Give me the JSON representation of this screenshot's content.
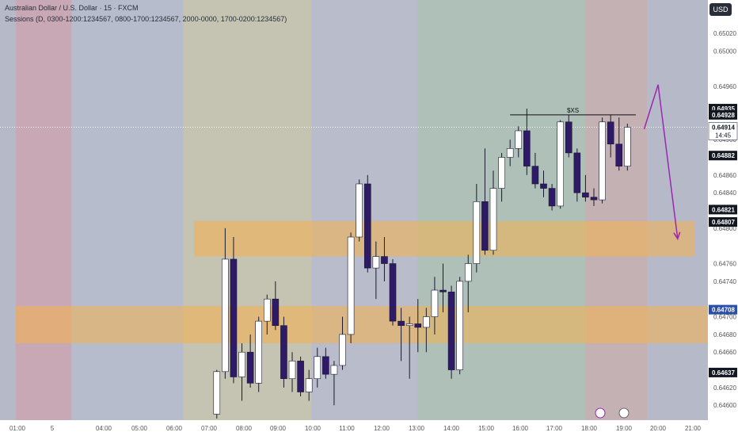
{
  "header": {
    "title": "Australian Dollar / U.S. Dollar · 15 · FXCM",
    "sessions": "Sessions (D, 0300-1200:1234567, 0800-1700:1234567, 2000-0000, 1700-0200:1234567)"
  },
  "currency_button": "USD",
  "colors": {
    "bull_body": "#ffffff",
    "bear_body": "#2e1a66",
    "wick": "#1a1a2e",
    "zone": "#f5b14c",
    "arrow": "#9c27b0",
    "price_line_bg": "#ffffff",
    "blue_label": "#2a4fa8"
  },
  "chart_data": {
    "type": "candlestick",
    "symbol": "AUDUSD",
    "interval": "15",
    "ylim": [
      0.64585,
      0.65055
    ],
    "y_ticks": [
      "0.65020",
      "0.65000",
      "0.64960",
      "0.64928",
      "0.64900",
      "0.64860",
      "0.64840",
      "0.64800",
      "0.64760",
      "0.64740",
      "0.64700",
      "0.64680",
      "0.64660",
      "0.64620",
      "0.64600"
    ],
    "x_ticks": [
      "01:00",
      "5",
      "04:00",
      "05:00",
      "06:00",
      "07:00",
      "08:00",
      "09:00",
      "10:00",
      "11:00",
      "12:00",
      "13:00",
      "14:00",
      "15:00",
      "16:00",
      "17:00",
      "18:00",
      "19:00",
      "20:00",
      "21:00"
    ],
    "price_labels": [
      {
        "text": "0.64935",
        "value": 0.64935,
        "style": "dark"
      },
      {
        "text": "0.64928",
        "value": 0.64928,
        "style": "dark"
      },
      {
        "text": "0.64914",
        "value": 0.64914,
        "style": "current",
        "sub": "14:45"
      },
      {
        "text": "0.64882",
        "value": 0.64882,
        "style": "dark"
      },
      {
        "text": "0.64821",
        "value": 0.64821,
        "style": "dark"
      },
      {
        "text": "0.64807",
        "value": 0.64807,
        "style": "dark"
      },
      {
        "text": "0.64708",
        "value": 0.64708,
        "style": "blue"
      },
      {
        "text": "0.64637",
        "value": 0.64637,
        "style": "dark"
      }
    ],
    "sessions": [
      {
        "start": "00:00",
        "end": "01:40",
        "color": "#c8a8b4"
      },
      {
        "start": "01:40",
        "end": "05:00",
        "color": "#b6bccc"
      },
      {
        "start": "05:00",
        "end": "08:50",
        "color": "#c5c4b2"
      },
      {
        "start": "08:50",
        "end": "12:00",
        "color": "#b8bccb"
      },
      {
        "start": "12:00",
        "end": "17:00",
        "color": "#aec0b8"
      },
      {
        "start": "17:00",
        "end": "18:50",
        "color": "#c4b1b4"
      }
    ],
    "zones": [
      {
        "from": 0.64808,
        "to": 0.64768,
        "start": "05:20",
        "end": "20:15"
      },
      {
        "from": 0.64712,
        "to": 0.6467,
        "start": "00:00",
        "end": "21:30"
      }
    ],
    "liquidity_line": {
      "value": 0.64928,
      "start": "14:45",
      "end": "18:30",
      "label": "$XS"
    },
    "projection": [
      {
        "time": "18:45",
        "value": 0.64912
      },
      {
        "time": "19:10",
        "value": 0.64962
      },
      {
        "time": "19:45",
        "value": 0.64788
      }
    ],
    "candles": [
      {
        "t": "06:00",
        "o": 0.6459,
        "h": 0.6464,
        "l": 0.64585,
        "c": 0.64638
      },
      {
        "t": "06:15",
        "o": 0.64638,
        "h": 0.648,
        "l": 0.6463,
        "c": 0.64765
      },
      {
        "t": "06:30",
        "o": 0.64765,
        "h": 0.6479,
        "l": 0.64625,
        "c": 0.64632
      },
      {
        "t": "06:45",
        "o": 0.64632,
        "h": 0.6467,
        "l": 0.64605,
        "c": 0.6466
      },
      {
        "t": "07:00",
        "o": 0.6466,
        "h": 0.6468,
        "l": 0.6462,
        "c": 0.64625
      },
      {
        "t": "07:15",
        "o": 0.64625,
        "h": 0.647,
        "l": 0.64615,
        "c": 0.64695
      },
      {
        "t": "07:30",
        "o": 0.64695,
        "h": 0.64725,
        "l": 0.6468,
        "c": 0.6472
      },
      {
        "t": "07:45",
        "o": 0.6472,
        "h": 0.6474,
        "l": 0.64685,
        "c": 0.6469
      },
      {
        "t": "08:00",
        "o": 0.6469,
        "h": 0.647,
        "l": 0.6462,
        "c": 0.6463
      },
      {
        "t": "08:15",
        "o": 0.6463,
        "h": 0.6466,
        "l": 0.64615,
        "c": 0.6465
      },
      {
        "t": "08:30",
        "o": 0.6465,
        "h": 0.64655,
        "l": 0.6461,
        "c": 0.64615
      },
      {
        "t": "08:45",
        "o": 0.64615,
        "h": 0.6464,
        "l": 0.64605,
        "c": 0.6463
      },
      {
        "t": "09:00",
        "o": 0.6463,
        "h": 0.64665,
        "l": 0.6462,
        "c": 0.64655
      },
      {
        "t": "09:15",
        "o": 0.64655,
        "h": 0.64665,
        "l": 0.6463,
        "c": 0.64635
      },
      {
        "t": "09:30",
        "o": 0.64635,
        "h": 0.6465,
        "l": 0.646,
        "c": 0.64645
      },
      {
        "t": "09:45",
        "o": 0.64645,
        "h": 0.647,
        "l": 0.6464,
        "c": 0.6468
      },
      {
        "t": "10:00",
        "o": 0.6468,
        "h": 0.64795,
        "l": 0.6467,
        "c": 0.6479
      },
      {
        "t": "10:15",
        "o": 0.6479,
        "h": 0.64855,
        "l": 0.64785,
        "c": 0.6485
      },
      {
        "t": "10:30",
        "o": 0.6485,
        "h": 0.6486,
        "l": 0.6475,
        "c": 0.64755
      },
      {
        "t": "10:45",
        "o": 0.64755,
        "h": 0.64785,
        "l": 0.6472,
        "c": 0.64768
      },
      {
        "t": "11:00",
        "o": 0.64768,
        "h": 0.6479,
        "l": 0.6474,
        "c": 0.6476
      },
      {
        "t": "11:15",
        "o": 0.6476,
        "h": 0.64765,
        "l": 0.6469,
        "c": 0.64695
      },
      {
        "t": "11:30",
        "o": 0.64695,
        "h": 0.6471,
        "l": 0.6465,
        "c": 0.6469
      },
      {
        "t": "11:45",
        "o": 0.6469,
        "h": 0.647,
        "l": 0.6463,
        "c": 0.64692
      },
      {
        "t": "12:00",
        "o": 0.64692,
        "h": 0.6472,
        "l": 0.6466,
        "c": 0.64688
      },
      {
        "t": "12:15",
        "o": 0.64688,
        "h": 0.6471,
        "l": 0.6466,
        "c": 0.647
      },
      {
        "t": "12:30",
        "o": 0.647,
        "h": 0.64745,
        "l": 0.6468,
        "c": 0.6473
      },
      {
        "t": "12:45",
        "o": 0.6473,
        "h": 0.6476,
        "l": 0.64705,
        "c": 0.64728
      },
      {
        "t": "13:00",
        "o": 0.64728,
        "h": 0.64735,
        "l": 0.6463,
        "c": 0.6464
      },
      {
        "t": "13:15",
        "o": 0.6464,
        "h": 0.64745,
        "l": 0.64635,
        "c": 0.6474
      },
      {
        "t": "13:30",
        "o": 0.6474,
        "h": 0.6477,
        "l": 0.64705,
        "c": 0.6476
      },
      {
        "t": "13:45",
        "o": 0.6476,
        "h": 0.6485,
        "l": 0.6475,
        "c": 0.6483
      },
      {
        "t": "14:00",
        "o": 0.6483,
        "h": 0.6489,
        "l": 0.6477,
        "c": 0.64775
      },
      {
        "t": "14:15",
        "o": 0.64775,
        "h": 0.64865,
        "l": 0.6477,
        "c": 0.64845
      },
      {
        "t": "14:30",
        "o": 0.64845,
        "h": 0.64885,
        "l": 0.6483,
        "c": 0.6488
      },
      {
        "t": "14:45",
        "o": 0.6488,
        "h": 0.649,
        "l": 0.6487,
        "c": 0.6489
      },
      {
        "t": "15:00",
        "o": 0.6489,
        "h": 0.64915,
        "l": 0.6488,
        "c": 0.6491
      },
      {
        "t": "15:15",
        "o": 0.6491,
        "h": 0.64935,
        "l": 0.6486,
        "c": 0.6487
      },
      {
        "t": "15:30",
        "o": 0.6487,
        "h": 0.64885,
        "l": 0.64845,
        "c": 0.6485
      },
      {
        "t": "15:45",
        "o": 0.6485,
        "h": 0.64865,
        "l": 0.64835,
        "c": 0.64845
      },
      {
        "t": "16:00",
        "o": 0.64845,
        "h": 0.6485,
        "l": 0.6482,
        "c": 0.64825
      },
      {
        "t": "16:15",
        "o": 0.64825,
        "h": 0.64922,
        "l": 0.64822,
        "c": 0.6492
      },
      {
        "t": "16:30",
        "o": 0.6492,
        "h": 0.64928,
        "l": 0.6488,
        "c": 0.64885
      },
      {
        "t": "16:45",
        "o": 0.64885,
        "h": 0.6489,
        "l": 0.6483,
        "c": 0.6484
      },
      {
        "t": "17:00",
        "o": 0.6484,
        "h": 0.6486,
        "l": 0.6483,
        "c": 0.64835
      },
      {
        "t": "17:15",
        "o": 0.64835,
        "h": 0.64845,
        "l": 0.64825,
        "c": 0.64832
      },
      {
        "t": "17:30",
        "o": 0.64832,
        "h": 0.64925,
        "l": 0.64828,
        "c": 0.6492
      },
      {
        "t": "17:45",
        "o": 0.6492,
        "h": 0.64928,
        "l": 0.6488,
        "c": 0.64895
      },
      {
        "t": "18:00",
        "o": 0.64895,
        "h": 0.64925,
        "l": 0.64865,
        "c": 0.6487
      },
      {
        "t": "18:15",
        "o": 0.6487,
        "h": 0.64918,
        "l": 0.64865,
        "c": 0.64914
      }
    ]
  }
}
